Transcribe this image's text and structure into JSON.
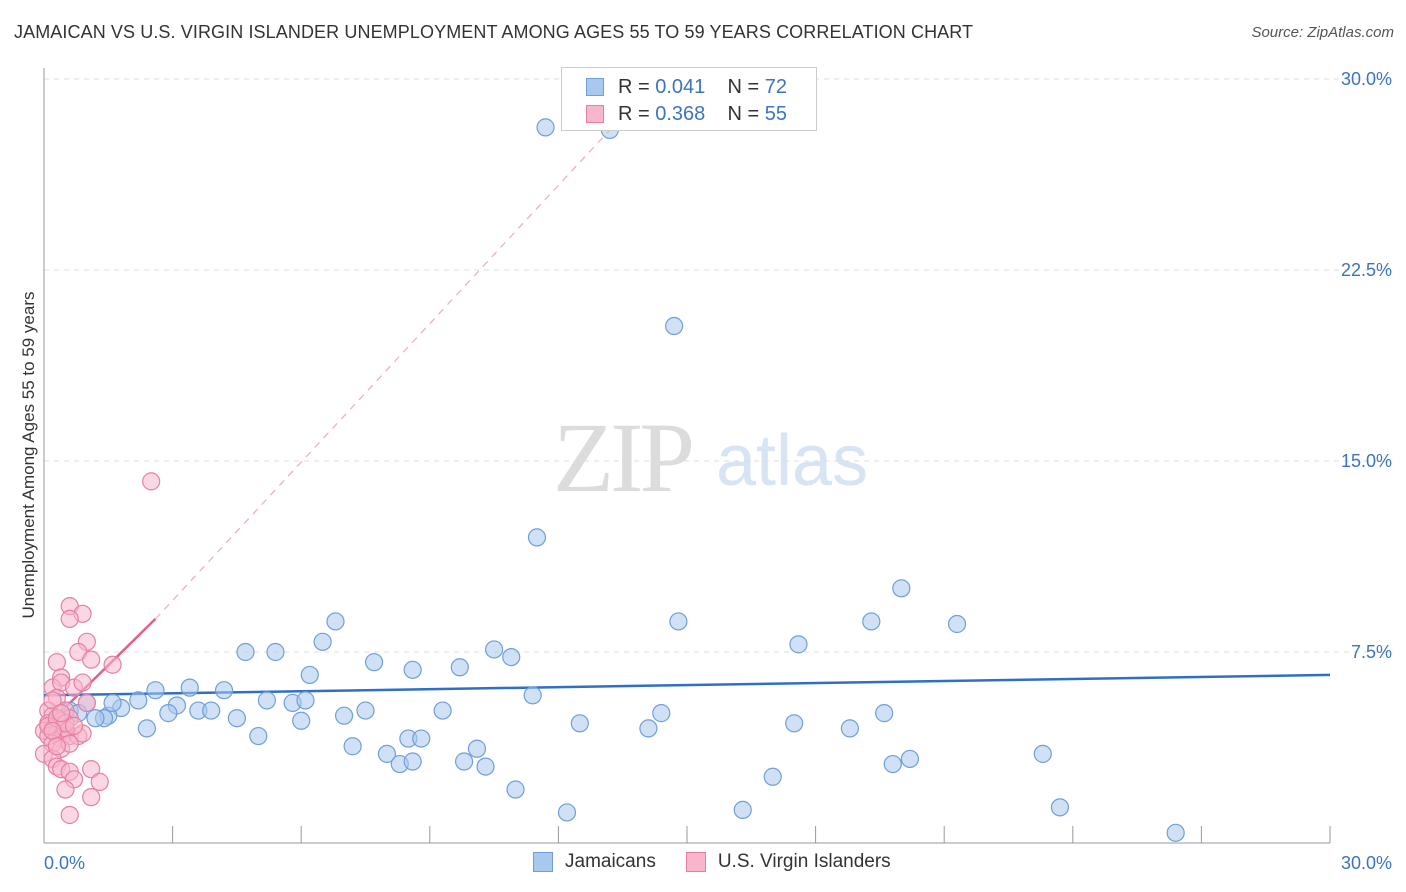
{
  "title": "JAMAICAN VS U.S. VIRGIN ISLANDER UNEMPLOYMENT AMONG AGES 55 TO 59 YEARS CORRELATION CHART",
  "source": "Source: ZipAtlas.com",
  "watermark": {
    "zip": "ZIP",
    "atlas": "atlas"
  },
  "legend": {
    "rows": [
      {
        "r_label": "R = ",
        "r_value": "0.041",
        "n_label": "N = ",
        "n_value": "72"
      },
      {
        "r_label": "R = ",
        "r_value": "0.368",
        "n_label": "N = ",
        "n_value": "55"
      }
    ]
  },
  "bottom_legend": {
    "jamaicans": "Jamaicans",
    "virgin": "U.S. Virgin Islanders"
  },
  "colors": {
    "blue_fill": "#a9c8ee",
    "blue_stroke": "#6f9fd8",
    "blue_line": "#2f6fc8",
    "pink_fill": "#f7b6cc",
    "pink_stroke": "#e67fa3",
    "pink_line": "#e0608e",
    "tick_color": "#3a75c4",
    "grid": "#dddddd"
  },
  "chart_data": {
    "type": "scatter",
    "title": "JAMAICAN VS U.S. VIRGIN ISLANDER UNEMPLOYMENT AMONG AGES 55 TO 59 YEARS CORRELATION CHART",
    "xlabel": "",
    "ylabel": "Unemployment Among Ages 55 to 59 years",
    "xlim": [
      0,
      30
    ],
    "ylim": [
      0,
      30
    ],
    "x_tick_labels": [
      "0.0%",
      "30.0%"
    ],
    "y_ticks": [
      7.5,
      15.0,
      22.5,
      30.0
    ],
    "y_tick_labels": [
      "7.5%",
      "15.0%",
      "22.5%",
      "30.0%"
    ],
    "series": [
      {
        "name": "Jamaicans",
        "r": 0.041,
        "n": 72,
        "trend": {
          "x": [
            0,
            30
          ],
          "y": [
            5.8,
            6.6
          ]
        },
        "points": [
          [
            11.7,
            28.1
          ],
          [
            13.2,
            28.0
          ],
          [
            14.7,
            20.3
          ],
          [
            11.5,
            12.0
          ],
          [
            20.0,
            10.0
          ],
          [
            19.3,
            8.7
          ],
          [
            21.3,
            8.6
          ],
          [
            14.8,
            8.7
          ],
          [
            17.6,
            7.8
          ],
          [
            6.8,
            8.7
          ],
          [
            6.5,
            7.9
          ],
          [
            4.7,
            7.5
          ],
          [
            5.4,
            7.5
          ],
          [
            7.7,
            7.1
          ],
          [
            8.6,
            6.8
          ],
          [
            9.7,
            6.9
          ],
          [
            10.5,
            7.6
          ],
          [
            10.9,
            7.3
          ],
          [
            6.2,
            6.6
          ],
          [
            2.6,
            6.0
          ],
          [
            3.4,
            6.1
          ],
          [
            4.2,
            6.0
          ],
          [
            2.2,
            5.6
          ],
          [
            3.1,
            5.4
          ],
          [
            5.2,
            5.6
          ],
          [
            5.8,
            5.5
          ],
          [
            6.1,
            5.6
          ],
          [
            1.8,
            5.3
          ],
          [
            1.0,
            5.5
          ],
          [
            1.5,
            5.0
          ],
          [
            3.6,
            5.2
          ],
          [
            3.9,
            5.2
          ],
          [
            4.5,
            4.9
          ],
          [
            2.9,
            5.1
          ],
          [
            2.4,
            4.5
          ],
          [
            1.4,
            4.9
          ],
          [
            1.2,
            4.9
          ],
          [
            0.6,
            5.2
          ],
          [
            7.0,
            5.0
          ],
          [
            7.5,
            5.2
          ],
          [
            9.3,
            5.2
          ],
          [
            11.4,
            5.8
          ],
          [
            14.4,
            5.1
          ],
          [
            19.6,
            5.1
          ],
          [
            12.5,
            4.7
          ],
          [
            14.1,
            4.5
          ],
          [
            17.5,
            4.7
          ],
          [
            18.8,
            4.5
          ],
          [
            6.0,
            4.8
          ],
          [
            5.0,
            4.2
          ],
          [
            7.2,
            3.8
          ],
          [
            8.5,
            4.1
          ],
          [
            8.8,
            4.1
          ],
          [
            8.0,
            3.5
          ],
          [
            10.1,
            3.7
          ],
          [
            8.3,
            3.1
          ],
          [
            8.6,
            3.2
          ],
          [
            9.8,
            3.2
          ],
          [
            10.3,
            3.0
          ],
          [
            17.0,
            2.6
          ],
          [
            19.8,
            3.1
          ],
          [
            20.2,
            3.3
          ],
          [
            23.3,
            3.5
          ],
          [
            11.0,
            2.1
          ],
          [
            16.3,
            1.3
          ],
          [
            12.2,
            1.2
          ],
          [
            23.7,
            1.4
          ],
          [
            26.4,
            0.4
          ],
          [
            1.6,
            5.5
          ],
          [
            0.3,
            4.9
          ],
          [
            0.4,
            4.6
          ],
          [
            0.8,
            5.1
          ]
        ]
      },
      {
        "name": "U.S. Virgin Islanders",
        "r": 0.368,
        "n": 55,
        "trend": {
          "x": [
            0,
            2.6
          ],
          "y": [
            4.5,
            8.8
          ]
        },
        "trend_extended": {
          "x": [
            2.6,
            13.2
          ],
          "y": [
            8.8,
            28.0
          ]
        },
        "points": [
          [
            2.5,
            14.2
          ],
          [
            0.6,
            9.3
          ],
          [
            0.9,
            9.0
          ],
          [
            0.6,
            8.8
          ],
          [
            1.0,
            7.9
          ],
          [
            0.8,
            7.5
          ],
          [
            1.1,
            7.2
          ],
          [
            0.3,
            7.1
          ],
          [
            1.6,
            7.0
          ],
          [
            0.4,
            6.5
          ],
          [
            0.2,
            6.1
          ],
          [
            0.4,
            6.3
          ],
          [
            0.7,
            6.1
          ],
          [
            0.9,
            6.3
          ],
          [
            0.3,
            5.7
          ],
          [
            1.0,
            5.5
          ],
          [
            0.1,
            5.2
          ],
          [
            0.2,
            5.0
          ],
          [
            0.5,
            5.2
          ],
          [
            0.6,
            4.9
          ],
          [
            0.1,
            4.7
          ],
          [
            0.2,
            4.5
          ],
          [
            0.3,
            4.6
          ],
          [
            0.4,
            4.8
          ],
          [
            0.5,
            4.4
          ],
          [
            0.0,
            4.4
          ],
          [
            0.1,
            4.2
          ],
          [
            0.3,
            4.3
          ],
          [
            0.4,
            4.1
          ],
          [
            0.6,
            4.2
          ],
          [
            0.8,
            4.2
          ],
          [
            0.9,
            4.3
          ],
          [
            0.5,
            4.5
          ],
          [
            0.2,
            3.9
          ],
          [
            0.4,
            3.7
          ],
          [
            0.6,
            3.9
          ],
          [
            0.0,
            3.5
          ],
          [
            0.2,
            3.3
          ],
          [
            0.3,
            3.0
          ],
          [
            0.4,
            2.9
          ],
          [
            0.6,
            2.8
          ],
          [
            1.1,
            2.9
          ],
          [
            0.7,
            2.5
          ],
          [
            1.3,
            2.4
          ],
          [
            0.5,
            2.1
          ],
          [
            1.1,
            1.8
          ],
          [
            0.6,
            1.1
          ],
          [
            0.1,
            4.6
          ],
          [
            0.2,
            5.6
          ],
          [
            0.3,
            4.9
          ],
          [
            0.5,
            4.7
          ],
          [
            0.4,
            5.1
          ],
          [
            0.7,
            4.6
          ],
          [
            0.2,
            4.4
          ],
          [
            0.3,
            3.8
          ]
        ]
      }
    ]
  }
}
